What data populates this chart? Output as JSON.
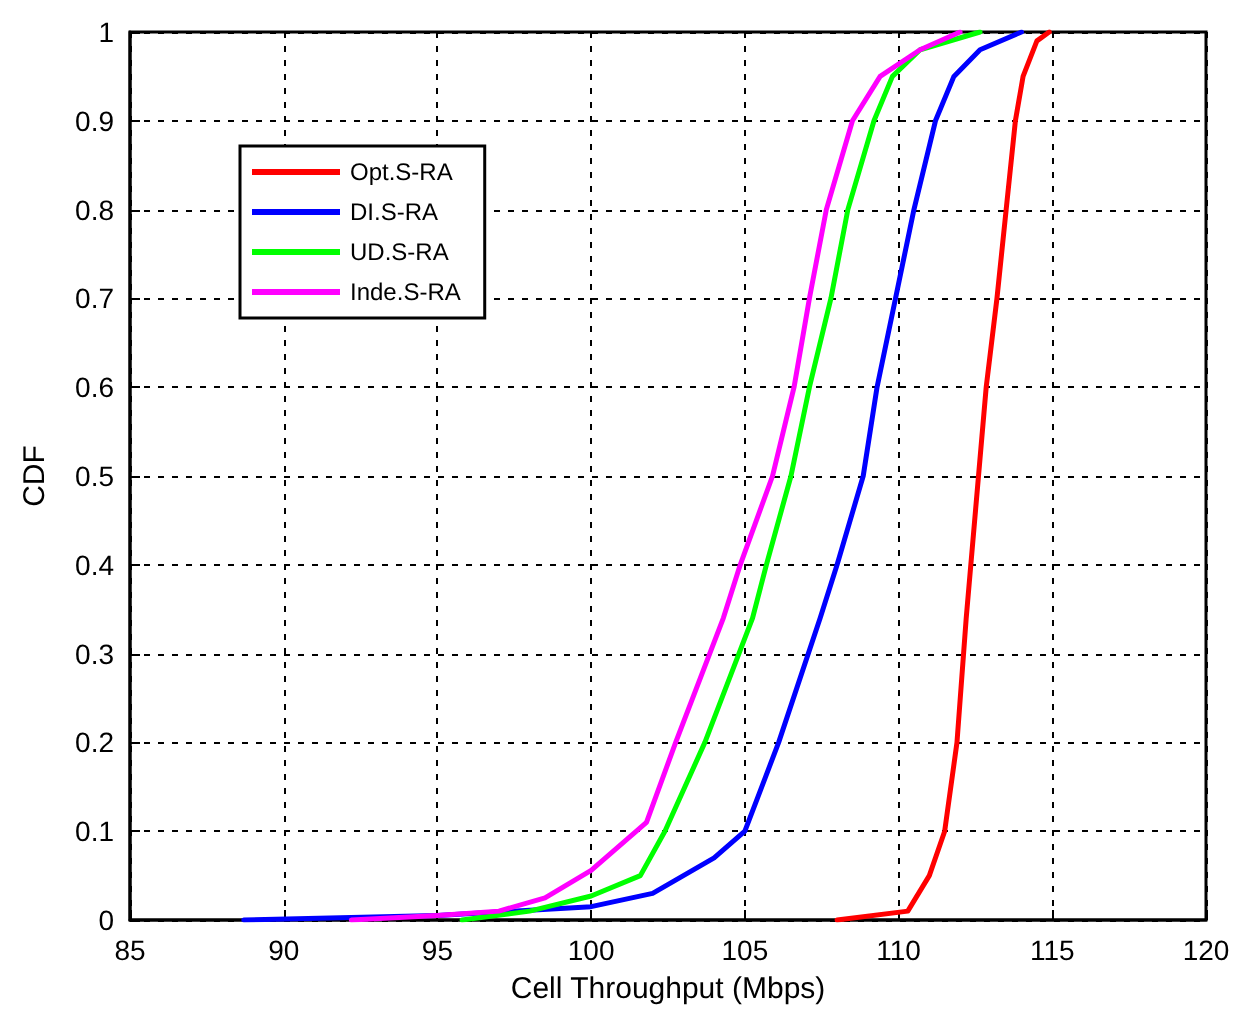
{
  "chart_data": {
    "type": "line",
    "xlabel": "Cell Throughput (Mbps)",
    "ylabel": "CDF",
    "xlim": [
      85,
      120
    ],
    "xticks": [
      85,
      90,
      95,
      100,
      105,
      110,
      115,
      120
    ],
    "ylim": [
      0,
      1
    ],
    "yticks": [
      0,
      0.1,
      0.2,
      0.3,
      0.4,
      0.5,
      0.6,
      0.7,
      0.8,
      0.9,
      1
    ],
    "grid": true,
    "legend": "top left",
    "marker": "none",
    "line_style": "solid",
    "series": [
      {
        "name": "Opt.S-RA",
        "color": "#ff0000",
        "x": [
          108.0,
          110.3,
          111.0,
          111.5,
          111.9,
          112.2,
          112.6,
          112.85,
          113.2,
          113.5,
          113.8,
          114.05,
          114.5,
          114.9
        ],
        "values": [
          0,
          0.01,
          0.05,
          0.1,
          0.2,
          0.34,
          0.5,
          0.6,
          0.7,
          0.8,
          0.9,
          0.95,
          0.99,
          1
        ]
      },
      {
        "name": "DI.S-RA",
        "color": "#0000ff",
        "x": [
          88.7,
          95,
          100,
          102,
          103,
          104,
          105,
          106.1,
          107.45,
          108.0,
          108.85,
          109.3,
          109.9,
          110.5,
          111.2,
          111.8,
          112.65,
          114.0
        ],
        "values": [
          0,
          0.005,
          0.015,
          0.03,
          0.05,
          0.07,
          0.1,
          0.2,
          0.34,
          0.4,
          0.5,
          0.6,
          0.7,
          0.8,
          0.9,
          0.95,
          0.98,
          1
        ]
      },
      {
        "name": "UD.S-RA",
        "color": "#00ff00",
        "x": [
          95.8,
          98,
          100,
          101.6,
          102.4,
          103.7,
          105.25,
          105.7,
          106.5,
          107.1,
          107.8,
          108.35,
          109.2,
          109.8,
          110.7,
          112.65
        ],
        "values": [
          0,
          0.01,
          0.027,
          0.05,
          0.1,
          0.2,
          0.34,
          0.4,
          0.5,
          0.6,
          0.7,
          0.8,
          0.9,
          0.95,
          0.98,
          1
        ]
      },
      {
        "name": "Inde.S-RA",
        "color": "#ff00ff",
        "x": [
          92.2,
          95,
          97,
          98.5,
          100,
          101.8,
          102.75,
          104.3,
          104.85,
          105.9,
          106.6,
          107.1,
          107.65,
          108.5,
          109.4,
          110.7,
          112.0
        ],
        "values": [
          0,
          0.005,
          0.01,
          0.025,
          0.056,
          0.11,
          0.2,
          0.34,
          0.4,
          0.5,
          0.6,
          0.7,
          0.8,
          0.9,
          0.95,
          0.98,
          1
        ]
      }
    ]
  }
}
